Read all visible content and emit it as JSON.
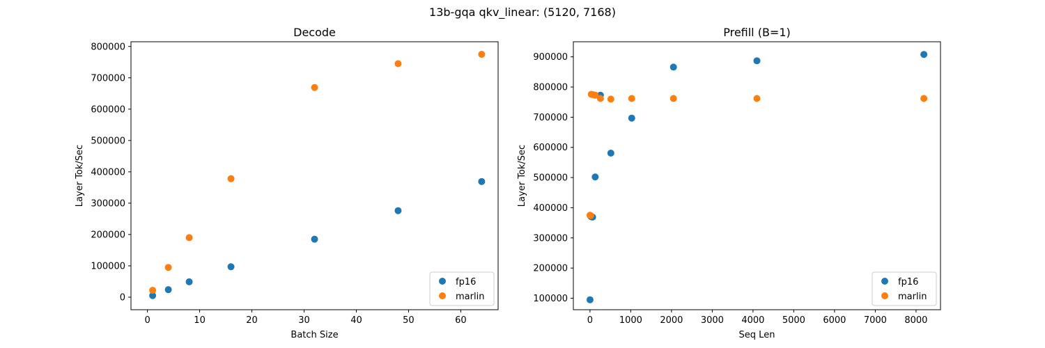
{
  "figure": {
    "suptitle": "13b-gqa qkv_linear: (5120, 7168)"
  },
  "colors": {
    "fp16": "#1f77b4",
    "marlin": "#ff7f0e"
  },
  "chart_data": [
    {
      "type": "scatter",
      "title": "Decode",
      "xlabel": "Batch Size",
      "ylabel": "Layer Tok/Sec",
      "xlim": [
        -3.15,
        67.15
      ],
      "ylim": [
        -40000,
        815000
      ],
      "xticks": [
        0,
        10,
        20,
        30,
        40,
        50,
        60
      ],
      "yticks": [
        0,
        100000,
        200000,
        300000,
        400000,
        500000,
        600000,
        700000,
        800000
      ],
      "grid": false,
      "legend_position": "lower-right",
      "series": [
        {
          "name": "fp16",
          "color": "#1f77b4",
          "x": [
            1,
            4,
            8,
            16,
            32,
            48,
            64
          ],
          "y": [
            5000,
            24000,
            49000,
            97000,
            185000,
            276000,
            369000
          ]
        },
        {
          "name": "marlin",
          "color": "#ff7f0e",
          "x": [
            1,
            4,
            8,
            16,
            32,
            48,
            64
          ],
          "y": [
            22000,
            95000,
            190000,
            378000,
            669000,
            745000,
            775000
          ]
        }
      ]
    },
    {
      "type": "scatter",
      "title": "Prefill (B=1)",
      "xlabel": "Seq Len",
      "ylabel": "Layer Tok/Sec",
      "xlim": [
        -408,
        8600
      ],
      "ylim": [
        62000,
        950000
      ],
      "xticks": [
        0,
        1000,
        2000,
        3000,
        4000,
        5000,
        6000,
        7000,
        8000
      ],
      "yticks": [
        100000,
        200000,
        300000,
        400000,
        500000,
        600000,
        700000,
        800000,
        900000
      ],
      "grid": false,
      "legend_position": "lower-right",
      "series": [
        {
          "name": "fp16",
          "color": "#1f77b4",
          "x": [
            1,
            16,
            32,
            64,
            128,
            256,
            512,
            1024,
            2048,
            4096,
            8192
          ],
          "y": [
            95000,
            372000,
            370000,
            369000,
            502000,
            773000,
            581000,
            697000,
            866000,
            887000,
            908000
          ]
        },
        {
          "name": "marlin",
          "color": "#ff7f0e",
          "x": [
            1,
            16,
            32,
            64,
            128,
            256,
            512,
            1024,
            2048,
            4096,
            8192
          ],
          "y": [
            375000,
            374000,
            776000,
            775000,
            773000,
            762000,
            760000,
            762000,
            762000,
            762000,
            762000
          ]
        }
      ]
    }
  ]
}
